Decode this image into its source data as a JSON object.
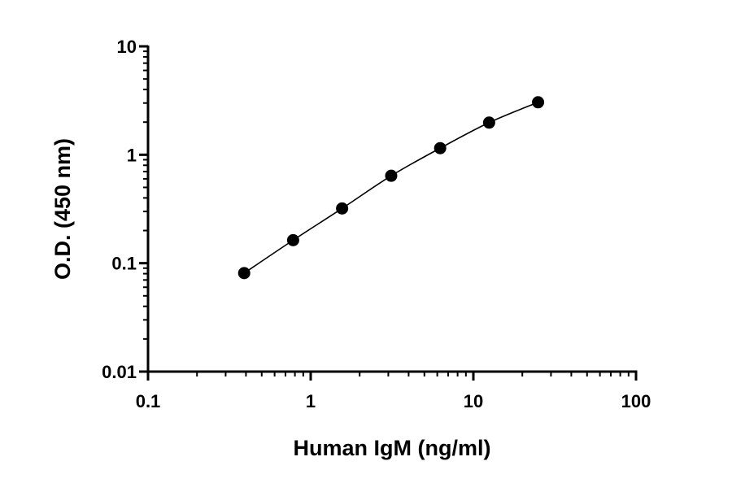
{
  "chart_data": {
    "type": "scatter",
    "title": "",
    "xlabel": "Human IgM (ng/ml)",
    "ylabel": "O.D. (450 nm)",
    "x_scale": "log",
    "y_scale": "log",
    "xlim": [
      0.1,
      100
    ],
    "ylim": [
      0.01,
      10
    ],
    "x_ticks": [
      "0.1",
      "1",
      "10",
      "100"
    ],
    "y_ticks": [
      "0.01",
      "0.1",
      "1",
      "10"
    ],
    "grid": false,
    "legend": "none",
    "series": [
      {
        "x": [
          0.39,
          0.78,
          1.56,
          3.125,
          6.25,
          12.5,
          25
        ],
        "y": [
          0.081,
          0.163,
          0.32,
          0.64,
          1.15,
          1.98,
          3.05
        ],
        "marker_color": "#000000",
        "fit_line": true
      }
    ]
  }
}
